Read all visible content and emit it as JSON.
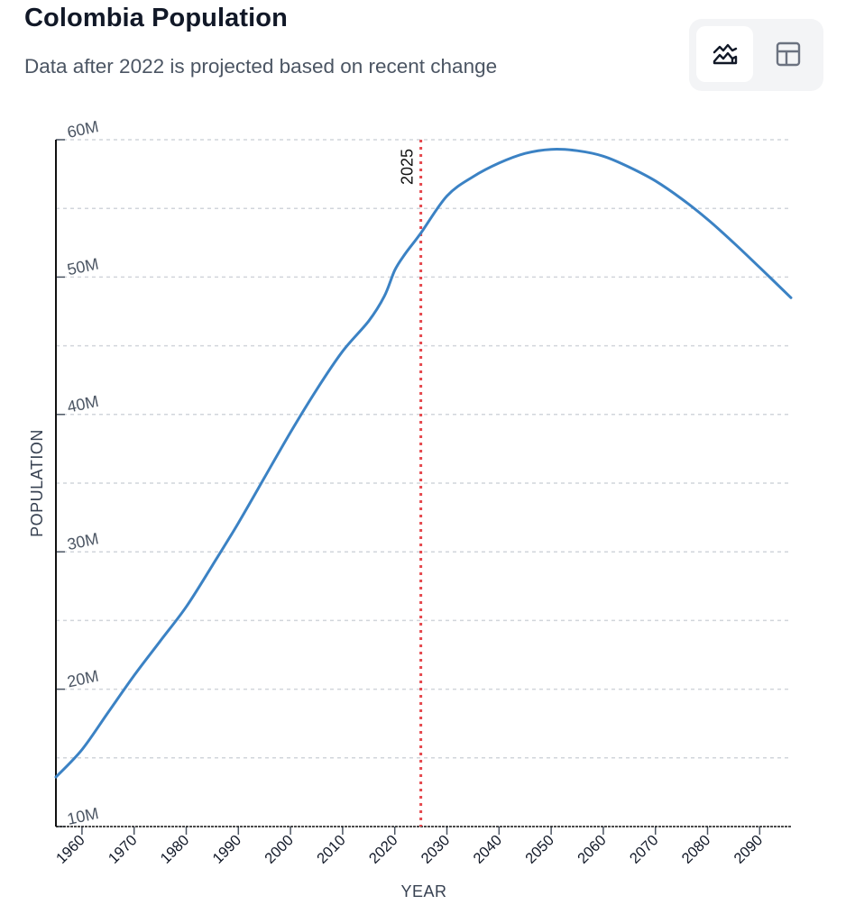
{
  "header": {
    "title": "Colombia Population",
    "subtitle": "Data after 2022 is projected based on recent change"
  },
  "view_toggle": {
    "options": [
      {
        "name": "chart-view",
        "icon": "area-chart-icon",
        "active": true
      },
      {
        "name": "table-view",
        "icon": "table-icon",
        "active": false
      }
    ]
  },
  "colors": {
    "line": "#3b82c4",
    "marker": "#e5484d",
    "grid": "#d1d5db",
    "axis": "#111111"
  },
  "chart_data": {
    "type": "line",
    "title": "Colombia Population",
    "subtitle": "Data after 2022 is projected based on recent change",
    "xlabel": "YEAR",
    "ylabel": "POPULATION",
    "xlim": [
      1955,
      2096
    ],
    "ylim": [
      10000000,
      60000000
    ],
    "grid": true,
    "x_ticks": [
      1960,
      1970,
      1980,
      1990,
      2000,
      2010,
      2020,
      2030,
      2040,
      2050,
      2060,
      2070,
      2080,
      2090
    ],
    "x_tick_labels": [
      "1960",
      "1970",
      "1980",
      "1990",
      "2000",
      "2010",
      "2020",
      "2030",
      "2040",
      "2050",
      "2060",
      "2070",
      "2080",
      "2090"
    ],
    "y_ticks": [
      10000000,
      20000000,
      30000000,
      40000000,
      50000000,
      60000000
    ],
    "y_tick_labels": [
      "10M",
      "20M",
      "30M",
      "40M",
      "50M",
      "60M"
    ],
    "y_minor_grid": [
      15000000,
      25000000,
      35000000,
      45000000,
      55000000
    ],
    "marker": {
      "x": 2025,
      "label": "2025"
    },
    "series": [
      {
        "name": "Population",
        "x": [
          1955,
          1960,
          1965,
          1970,
          1975,
          1980,
          1985,
          1990,
          1995,
          2000,
          2005,
          2010,
          2015,
          2018,
          2020,
          2022,
          2025,
          2030,
          2035,
          2040,
          2045,
          2050,
          2055,
          2060,
          2065,
          2070,
          2075,
          2080,
          2085,
          2090,
          2096
        ],
        "values": [
          13600000,
          15600000,
          18300000,
          21000000,
          23500000,
          26000000,
          29000000,
          32100000,
          35400000,
          38700000,
          41800000,
          44600000,
          46800000,
          48600000,
          50500000,
          51700000,
          53200000,
          55900000,
          57300000,
          58300000,
          59000000,
          59300000,
          59200000,
          58800000,
          58000000,
          57000000,
          55700000,
          54200000,
          52500000,
          50700000,
          48500000
        ]
      }
    ]
  }
}
